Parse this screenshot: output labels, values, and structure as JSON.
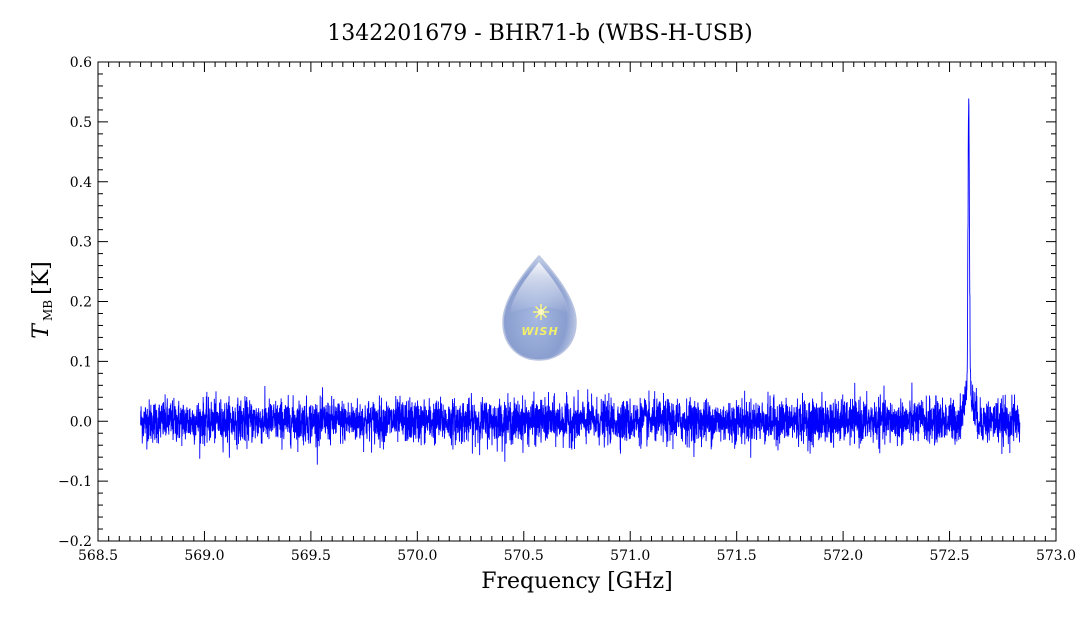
{
  "chart_data": {
    "type": "line",
    "title": "1342201679 - BHR71-b (WBS-H-USB)",
    "xlabel": "Frequency [GHz]",
    "ylabel_main": "T",
    "ylabel_sub": "MB",
    "ylabel_unit": "[K]",
    "xlim": [
      568.5,
      573.0
    ],
    "ylim": [
      -0.2,
      0.6
    ],
    "x_ticks": [
      "568.5",
      "569.0",
      "569.5",
      "570.0",
      "570.5",
      "571.0",
      "571.5",
      "572.0",
      "572.5",
      "573.0"
    ],
    "y_ticks": [
      "−0.2",
      "−0.1",
      "0.0",
      "0.1",
      "0.2",
      "0.3",
      "0.4",
      "0.5",
      "0.6"
    ],
    "series": [
      {
        "color": "#0000ff",
        "x_start": 568.7,
        "x_end": 572.83,
        "baseline": 0.0,
        "noise_rms": 0.018,
        "peak": {
          "x": 572.59,
          "y": 0.5
        }
      }
    ],
    "grid": false,
    "logo": {
      "text": "WISH"
    }
  }
}
